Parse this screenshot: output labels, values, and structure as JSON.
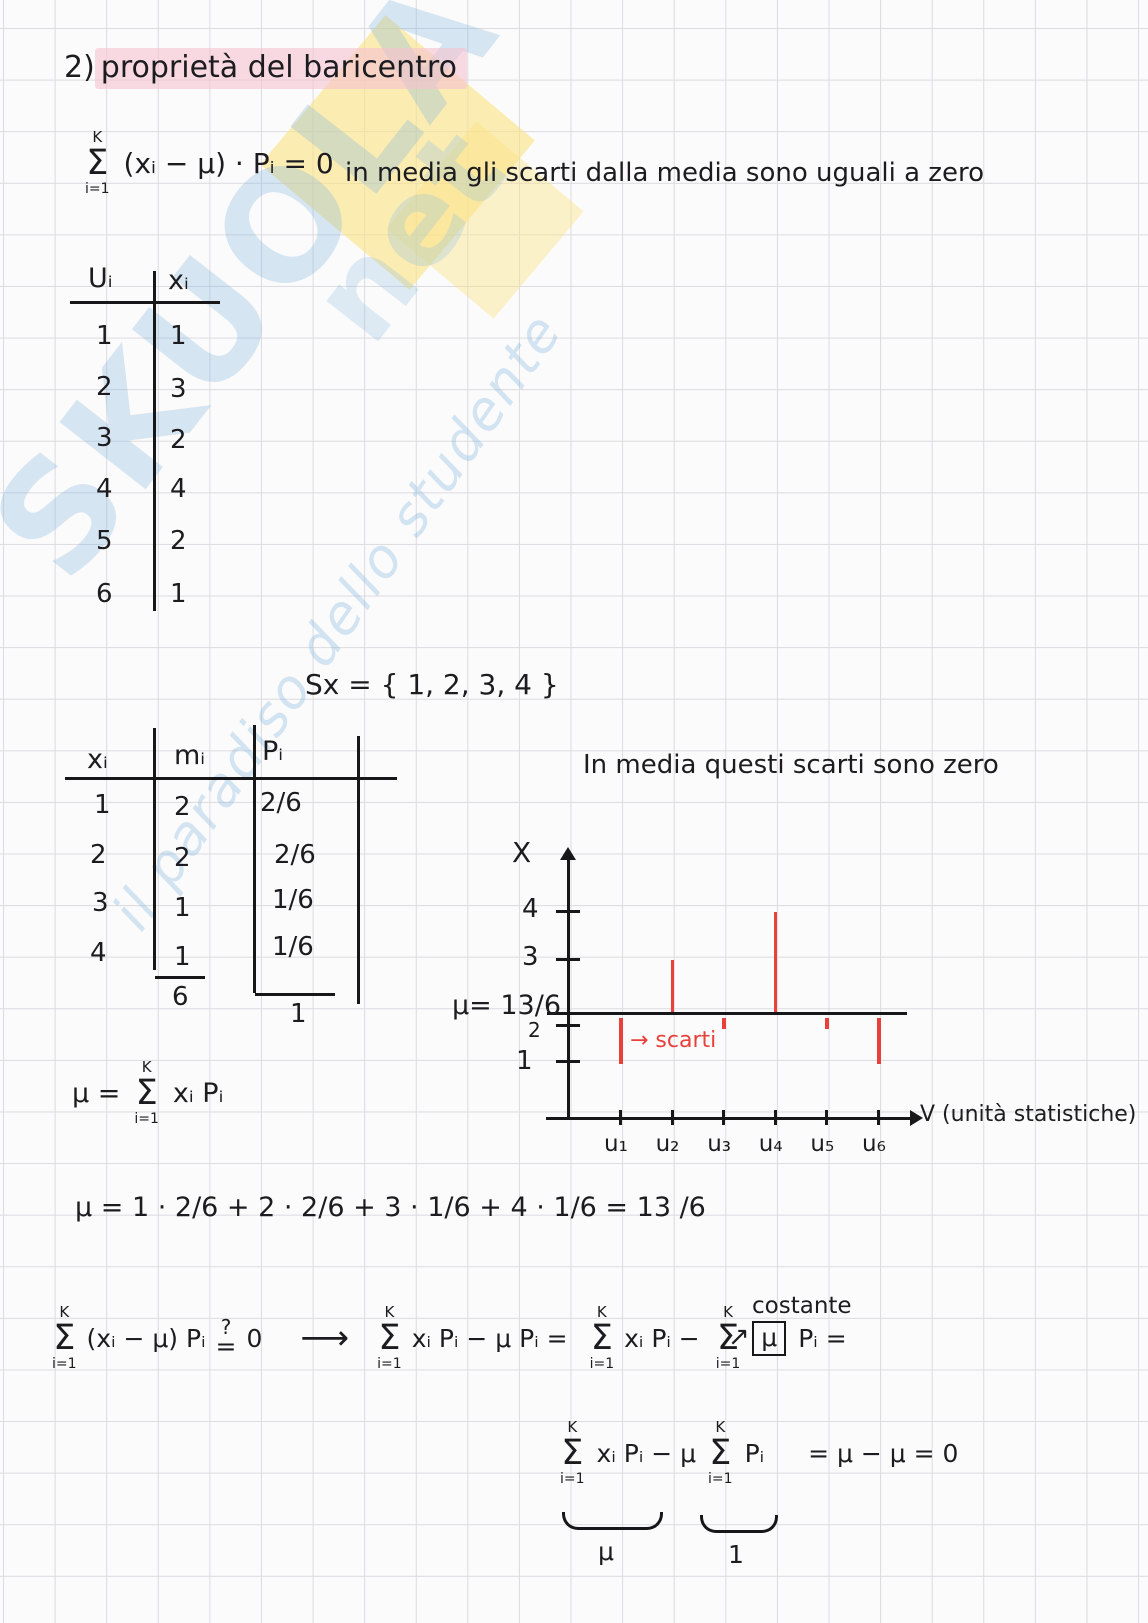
{
  "page": {
    "title_prefix": "2)",
    "title": "proprietà del baricentro"
  },
  "sums": {
    "upper": "K",
    "sigma": "Σ",
    "lower": "i=1"
  },
  "formula_top": {
    "body": "(xᵢ − μ) · Pᵢ = 0",
    "note": "in media gli scarti dalla media sono uguali a zero"
  },
  "table_units": {
    "headers": [
      "Uᵢ",
      "xᵢ"
    ],
    "rows": [
      [
        "1",
        "1"
      ],
      [
        "2",
        "3"
      ],
      [
        "3",
        "2"
      ],
      [
        "4",
        "4"
      ],
      [
        "5",
        "2"
      ],
      [
        "6",
        "1"
      ]
    ]
  },
  "support_set": {
    "text": "Sx = { 1, 2, 3, 4 }"
  },
  "table_freq": {
    "headers": [
      "xᵢ",
      "mᵢ",
      "Pᵢ"
    ],
    "rows": [
      [
        "1",
        "2",
        "2/6"
      ],
      [
        "2",
        "2",
        "2/6"
      ],
      [
        "3",
        "1",
        "1/6"
      ],
      [
        "4",
        "1",
        "1/6"
      ]
    ],
    "totals": {
      "mi": "6",
      "pi": "1"
    }
  },
  "chart": {
    "type": "line",
    "title": "In media questi scarti sono zero",
    "y_axis_label": "X",
    "x_axis_label": "V (unità statistiche)",
    "y_ticks": [
      "4",
      "3",
      "2",
      "1"
    ],
    "mean_label": "μ= 13/6",
    "mean_value": 2.1667,
    "x_labels": [
      "u₁",
      "u₂",
      "u₃",
      "u₄",
      "u₅",
      "u₆"
    ],
    "values": [
      1,
      3,
      2,
      4,
      2,
      1
    ],
    "annotation": "→ scarti",
    "deviation_color": "#e8403b",
    "ylim": [
      0,
      4.5
    ]
  },
  "formula_mean": {
    "lhs": "μ =",
    "body": "xᵢ Pᵢ"
  },
  "computation": {
    "text": "μ = 1 · 2/6  +  2 · 2/6  +  3 · 1/6  +  4 · 1/6   =   13 /6"
  },
  "derivation": {
    "a_pre": "(xᵢ − μ) Pᵢ",
    "a_q": "?",
    "a_eq": "=",
    "a_zero": "0",
    "a_arrow": "⟶",
    "b_body": "xᵢ Pᵢ  −  μ Pᵢ   =",
    "c_body1": "xᵢ Pᵢ  −",
    "c_boxed": "μ",
    "c_tail": "Pᵢ  =",
    "constant_label": "costante",
    "constant_arrow": "↗",
    "d_left": "xᵢ Pᵢ  −  μ",
    "d_mid": "Pᵢ",
    "d_right": "=  μ − μ = 0",
    "brace_label_mu": "μ",
    "brace_label_one": "1"
  },
  "watermark": {
    "word": "SKUOLA",
    "net": "net",
    "tagline": "il paradiso dello studente"
  }
}
